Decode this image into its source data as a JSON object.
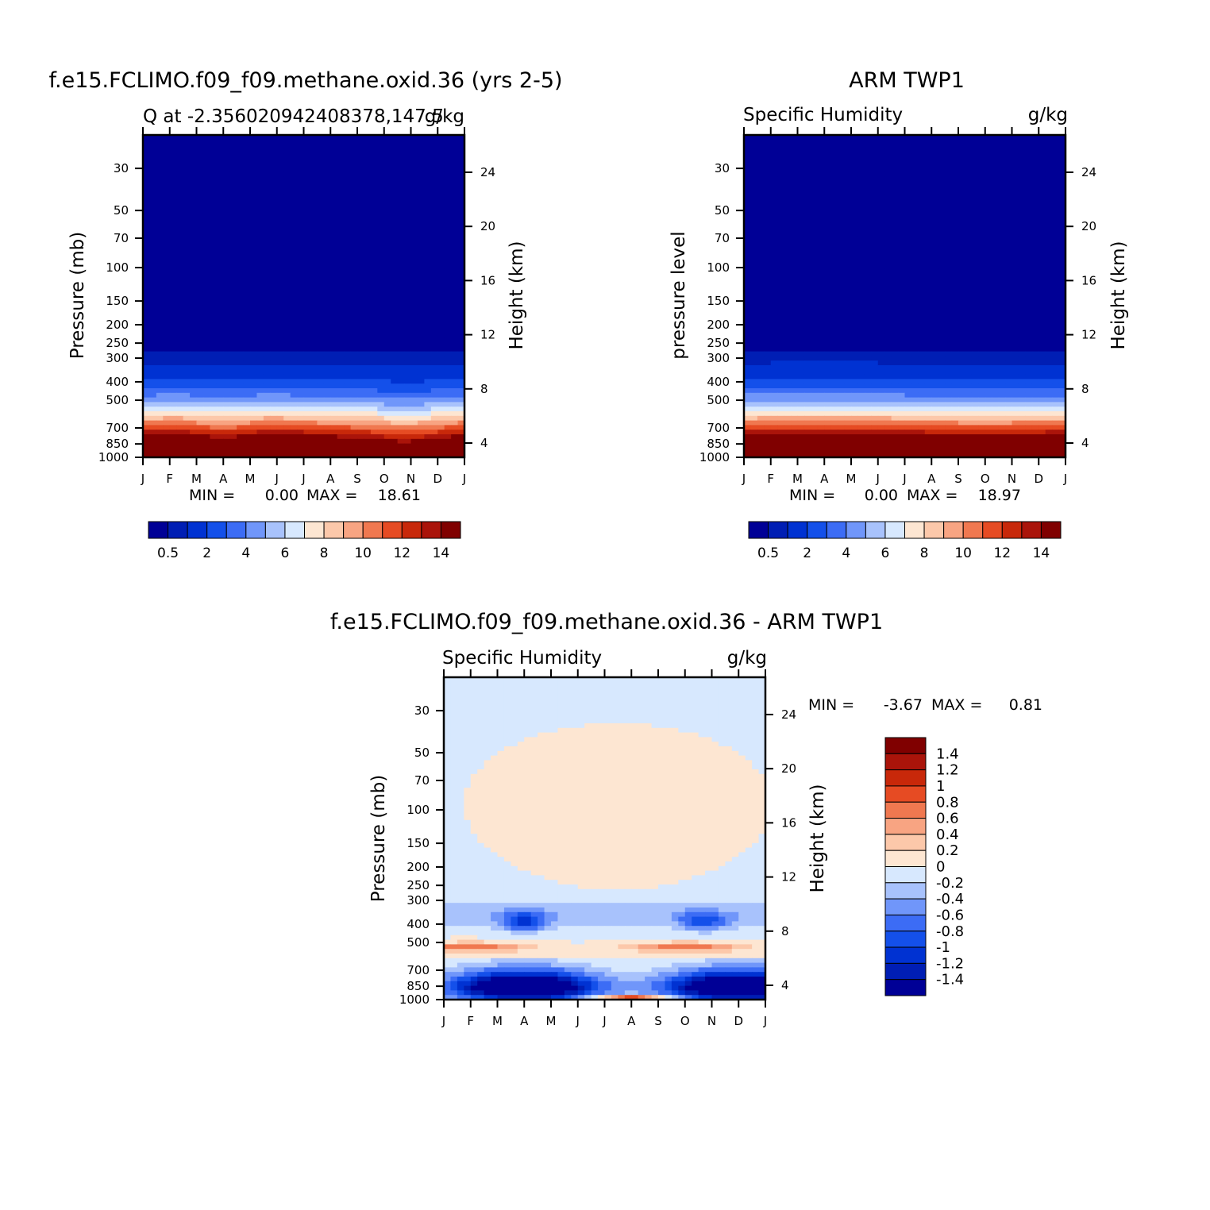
{
  "chart_data": [
    {
      "type": "heatmap",
      "title": "f.e15.FCLIMO.f09_f09.methane.oxid.36 (yrs 2-5)",
      "subtitle_left": "Q at -2.356020942408378,147.5",
      "units": "g/kg",
      "ylabel": "Pressure (mb)",
      "ylabel_right": "Height (km)",
      "x_ticks": [
        "J",
        "F",
        "M",
        "A",
        "M",
        "J",
        "J",
        "A",
        "S",
        "O",
        "N",
        "D",
        "J"
      ],
      "y_ticks": [
        "30",
        "50",
        "70",
        "100",
        "150",
        "200",
        "250",
        "300",
        "400",
        "500",
        "700",
        "850",
        "1000"
      ],
      "y_ticks_right": [
        "24",
        "20",
        "16",
        "12",
        "8",
        "4"
      ],
      "min_label": "MIN =",
      "min_value": "0.00",
      "max_label": "MAX =",
      "max_value": "18.61",
      "colorbar_labels": [
        "0.5",
        "2",
        "4",
        "6",
        "8",
        "10",
        "12",
        "14"
      ],
      "contour_levels": [
        0.5,
        1,
        2,
        3,
        4,
        5,
        6,
        7,
        8,
        9,
        10,
        11,
        12,
        13,
        14
      ],
      "colors": [
        "#000096",
        "#001eb4",
        "#0032d2",
        "#1450ea",
        "#3c6cf5",
        "#7096fa",
        "#a8c2fc",
        "#d7e8fe",
        "#fde6d2",
        "#fcc8aa",
        "#f8a482",
        "#f07850",
        "#e64b23",
        "#c8280a",
        "#aa140a",
        "#800000"
      ],
      "ylim": [
        1000,
        20
      ]
    },
    {
      "type": "heatmap",
      "title": "ARM TWP1",
      "subtitle_left": "Specific Humidity",
      "units": "g/kg",
      "ylabel": "pressure level",
      "ylabel_right": "Height (km)",
      "x_ticks": [
        "J",
        "F",
        "M",
        "A",
        "M",
        "J",
        "J",
        "A",
        "S",
        "O",
        "N",
        "D",
        "J"
      ],
      "y_ticks": [
        "30",
        "50",
        "70",
        "100",
        "150",
        "200",
        "250",
        "300",
        "400",
        "500",
        "700",
        "850",
        "1000"
      ],
      "y_ticks_right": [
        "24",
        "20",
        "16",
        "12",
        "8",
        "4"
      ],
      "min_label": "MIN =",
      "min_value": "0.00",
      "max_label": "MAX =",
      "max_value": "18.97",
      "colorbar_labels": [
        "0.5",
        "2",
        "4",
        "6",
        "8",
        "10",
        "12",
        "14"
      ],
      "contour_levels": [
        0.5,
        1,
        2,
        3,
        4,
        5,
        6,
        7,
        8,
        9,
        10,
        11,
        12,
        13,
        14
      ],
      "colors": [
        "#000096",
        "#001eb4",
        "#0032d2",
        "#1450ea",
        "#3c6cf5",
        "#7096fa",
        "#a8c2fc",
        "#d7e8fe",
        "#fde6d2",
        "#fcc8aa",
        "#f8a482",
        "#f07850",
        "#e64b23",
        "#c8280a",
        "#aa140a",
        "#800000"
      ],
      "ylim": [
        1000,
        20
      ]
    },
    {
      "type": "heatmap",
      "title": "f.e15.FCLIMO.f09_f09.methane.oxid.36 - ARM TWP1",
      "subtitle_left": "Specific Humidity",
      "units": "g/kg",
      "ylabel": "Pressure (mb)",
      "ylabel_right": "Height (km)",
      "x_ticks": [
        "J",
        "F",
        "M",
        "A",
        "M",
        "J",
        "J",
        "A",
        "S",
        "O",
        "N",
        "D",
        "J"
      ],
      "y_ticks": [
        "30",
        "50",
        "70",
        "100",
        "150",
        "200",
        "250",
        "300",
        "400",
        "500",
        "700",
        "850",
        "1000"
      ],
      "y_ticks_right": [
        "24",
        "20",
        "16",
        "12",
        "8",
        "4"
      ],
      "min_label": "MIN =",
      "min_value": "-3.67",
      "max_label": "MAX =",
      "max_value": "0.81",
      "colorbar_labels": [
        "1.4",
        "1.2",
        "1",
        "0.8",
        "0.6",
        "0.4",
        "0.2",
        "0",
        "-0.2",
        "-0.4",
        "-0.6",
        "-0.8",
        "-1",
        "-1.2",
        "-1.4"
      ],
      "contour_levels": [
        -1.4,
        -1.2,
        -1,
        -0.8,
        -0.6,
        -0.4,
        -0.2,
        0,
        0.2,
        0.4,
        0.6,
        0.8,
        1,
        1.2,
        1.4
      ],
      "colors": [
        "#000096",
        "#001eb4",
        "#0032d2",
        "#1450ea",
        "#3c6cf5",
        "#7096fa",
        "#a8c2fc",
        "#d7e8fe",
        "#fde6d2",
        "#fcc8aa",
        "#f8a482",
        "#f07850",
        "#e64b23",
        "#c8280a",
        "#aa140a",
        "#800000"
      ],
      "ylim": [
        1000,
        20
      ]
    }
  ]
}
